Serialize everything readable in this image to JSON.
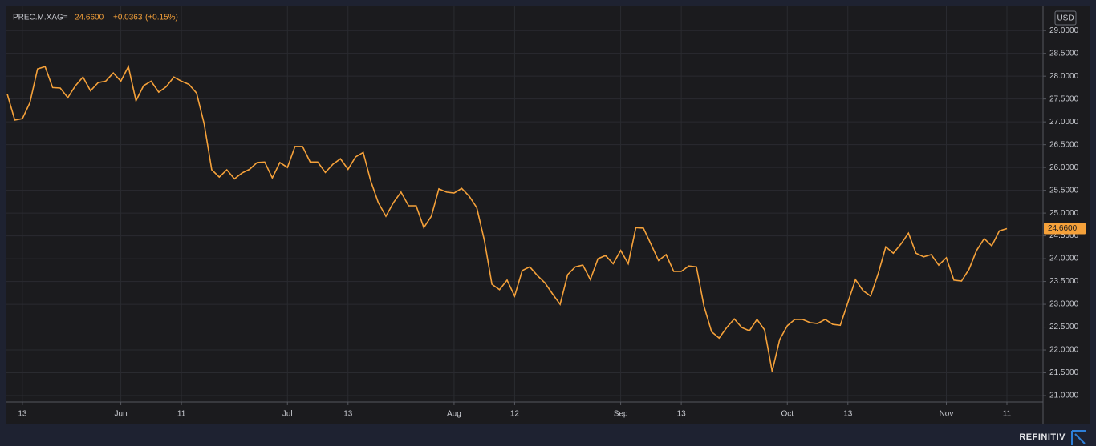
{
  "chart_data": {
    "type": "line",
    "title": "PREC.M.XAG=",
    "last_price": "24.6600",
    "change": "+0.0363",
    "change_pct": "(+0.15%)",
    "currency": "USD",
    "color": "#f5a13a",
    "grid": true,
    "categories": [
      null,
      null,
      "13",
      null,
      null,
      null,
      null,
      null,
      null,
      null,
      null,
      null,
      null,
      null,
      null,
      "Jun",
      null,
      null,
      null,
      null,
      null,
      null,
      null,
      "11",
      null,
      null,
      null,
      null,
      null,
      null,
      null,
      null,
      null,
      null,
      null,
      null,
      null,
      "Jul",
      null,
      null,
      null,
      null,
      null,
      null,
      null,
      "13",
      null,
      null,
      null,
      null,
      null,
      null,
      null,
      null,
      null,
      null,
      null,
      null,
      null,
      "Aug",
      null,
      null,
      null,
      null,
      null,
      null,
      null,
      "12",
      null,
      null,
      null,
      null,
      null,
      null,
      null,
      null,
      null,
      null,
      null,
      null,
      null,
      "Sep",
      null,
      null,
      null,
      null,
      null,
      null,
      null,
      "13",
      null,
      null,
      null,
      null,
      null,
      null,
      null,
      null,
      null,
      null,
      null,
      null,
      null,
      "Oct",
      null,
      null,
      null,
      null,
      null,
      null,
      null,
      "13",
      null,
      null,
      null,
      null,
      null,
      null,
      null,
      null,
      null,
      null,
      null,
      null,
      "Nov",
      null,
      null,
      null,
      null,
      null,
      null,
      null,
      "11"
    ],
    "values": [
      27.61,
      27.04,
      27.07,
      27.42,
      28.16,
      28.21,
      27.75,
      27.74,
      27.53,
      27.79,
      27.98,
      27.68,
      27.86,
      27.89,
      28.07,
      27.89,
      28.21,
      27.46,
      27.79,
      27.89,
      27.65,
      27.77,
      27.98,
      27.89,
      27.82,
      27.63,
      26.96,
      25.95,
      25.79,
      25.95,
      25.75,
      25.88,
      25.96,
      26.11,
      26.12,
      25.77,
      26.11,
      26.0,
      26.46,
      26.46,
      26.12,
      26.12,
      25.89,
      26.07,
      26.19,
      25.96,
      26.23,
      26.33,
      25.7,
      25.23,
      24.93,
      25.23,
      25.46,
      25.16,
      25.16,
      24.68,
      24.93,
      25.53,
      25.46,
      25.44,
      25.54,
      25.37,
      25.12,
      24.4,
      23.44,
      23.32,
      23.53,
      23.18,
      23.74,
      23.82,
      23.63,
      23.47,
      23.23,
      23.0,
      23.65,
      23.82,
      23.86,
      23.54,
      24.0,
      24.07,
      23.89,
      24.18,
      23.89,
      24.68,
      24.67,
      24.32,
      23.96,
      24.09,
      23.72,
      23.72,
      23.84,
      23.82,
      22.96,
      22.4,
      22.26,
      22.49,
      22.68,
      22.49,
      22.42,
      22.67,
      22.44,
      21.53,
      22.23,
      22.53,
      22.67,
      22.67,
      22.6,
      22.58,
      22.67,
      22.56,
      22.54,
      23.04,
      23.54,
      23.3,
      23.18,
      23.67,
      24.26,
      24.12,
      24.32,
      24.56,
      24.12,
      24.04,
      24.09,
      23.86,
      24.02,
      23.53,
      23.51,
      23.77,
      24.18,
      24.44,
      24.28,
      24.61,
      24.66
    ],
    "ylim": [
      20.86,
      29.53
    ],
    "yticks": [
      {
        "value": 21,
        "label": "21.0000"
      },
      {
        "value": 21.5,
        "label": "21.5000"
      },
      {
        "value": 22,
        "label": "22.0000"
      },
      {
        "value": 22.5,
        "label": "22.5000"
      },
      {
        "value": 23,
        "label": "23.0000"
      },
      {
        "value": 23.5,
        "label": "23.5000"
      },
      {
        "value": 24,
        "label": "24.0000"
      },
      {
        "value": 24.5,
        "label": "24.5000"
      },
      {
        "value": 25,
        "label": "25.0000"
      },
      {
        "value": 25.5,
        "label": "25.5000"
      },
      {
        "value": 26,
        "label": "26.0000"
      },
      {
        "value": 26.5,
        "label": "26.5000"
      },
      {
        "value": 27,
        "label": "27.0000"
      },
      {
        "value": 27.5,
        "label": "27.5000"
      },
      {
        "value": 28,
        "label": "28.0000"
      },
      {
        "value": 28.5,
        "label": "28.5000"
      },
      {
        "value": 29,
        "label": "29.0000"
      }
    ]
  },
  "footer": {
    "brand": "REFINITIV"
  }
}
